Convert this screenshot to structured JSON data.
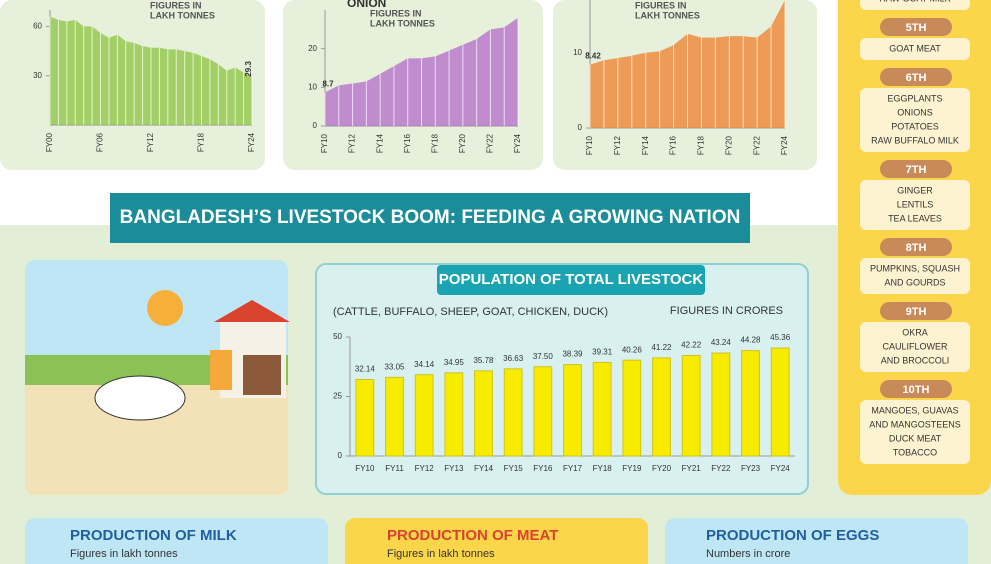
{
  "chart_data": [
    {
      "type": "area",
      "subtitle_lines": [
        "FIGURES IN",
        "LAKH TONNES"
      ],
      "color": "#8cc63f",
      "categories": [
        "FY00",
        null,
        null,
        null,
        null,
        null,
        "FY06",
        null,
        null,
        null,
        null,
        null,
        "FY12",
        null,
        null,
        null,
        null,
        null,
        "FY18",
        null,
        null,
        null,
        null,
        null,
        "FY24"
      ],
      "values": [
        66,
        64,
        63,
        64,
        60,
        60,
        56,
        53,
        55,
        51,
        50,
        48,
        47,
        47,
        46,
        46,
        45,
        44,
        42,
        40,
        37,
        33,
        35,
        32,
        29.3
      ],
      "value_labels": [
        null,
        null,
        null,
        null,
        null,
        null,
        null,
        null,
        null,
        null,
        null,
        null,
        null,
        null,
        null,
        null,
        null,
        null,
        null,
        null,
        null,
        null,
        null,
        null,
        "29.3"
      ],
      "ylim": [
        0,
        70
      ],
      "yticks": [
        30,
        60
      ]
    },
    {
      "type": "area",
      "title": "ONION",
      "subtitle_lines": [
        "FIGURES IN",
        "LAKH TONNES"
      ],
      "color": "#b36bc9",
      "categories": [
        "FY10",
        null,
        "FY12",
        null,
        "FY14",
        null,
        "FY16",
        null,
        "FY18",
        null,
        "FY20",
        null,
        "FY22",
        null,
        "FY24"
      ],
      "values": [
        8.7,
        10.5,
        11,
        11.5,
        13.5,
        15.5,
        17.5,
        17.5,
        18,
        19.5,
        21,
        22.5,
        25,
        25.5,
        28
      ],
      "value_labels": [
        "8.7",
        null,
        null,
        null,
        null,
        null,
        null,
        null,
        null,
        null,
        null,
        null,
        null,
        null,
        null
      ],
      "ylim": [
        0,
        30
      ],
      "yticks": [
        0,
        10,
        20
      ]
    },
    {
      "type": "area",
      "subtitle_lines": [
        "FIGURES IN",
        "LAKH TONNES"
      ],
      "color": "#f07f2b",
      "categories": [
        "FY10",
        null,
        "FY12",
        null,
        "FY14",
        null,
        "FY16",
        null,
        "FY18",
        null,
        "FY20",
        null,
        "FY22",
        null,
        "FY24"
      ],
      "values": [
        8.42,
        9,
        9.3,
        9.6,
        10,
        10.2,
        11,
        12.5,
        12,
        12,
        12.2,
        12.2,
        12,
        13.5,
        17
      ],
      "value_labels": [
        "8.42",
        null,
        null,
        null,
        null,
        null,
        null,
        null,
        null,
        null,
        null,
        null,
        null,
        null,
        null
      ],
      "ylim": [
        0,
        17
      ],
      "yticks": [
        0,
        10
      ]
    },
    {
      "type": "bar",
      "title": "POPULATION OF TOTAL LIVESTOCK",
      "subtitle": "(CATTLE, BUFFALO, SHEEP, GOAT, CHICKEN, DUCK)",
      "unit": "FIGURES IN CRORES",
      "color": "#f7ec00",
      "categories": [
        "FY10",
        "FY11",
        "FY12",
        "FY13",
        "FY14",
        "FY15",
        "FY16",
        "FY17",
        "FY18",
        "FY19",
        "FY20",
        "FY21",
        "FY22",
        "FY23",
        "FY24"
      ],
      "values": [
        32.14,
        33.05,
        34.14,
        34.95,
        35.78,
        36.63,
        37.5,
        38.39,
        39.31,
        40.26,
        41.22,
        42.22,
        43.24,
        44.28,
        45.36
      ],
      "value_labels": [
        "32.14",
        "33.05",
        "34.14",
        "34.95",
        "35.78",
        "36.63",
        "37.50",
        "38.39",
        "39.31",
        "40.26",
        "41.22",
        "42.22",
        "43.24",
        "44.28",
        "45.36"
      ],
      "ylim": [
        0,
        50
      ],
      "yticks": [
        0,
        25,
        50
      ]
    }
  ],
  "banner": "BANGLADESH’S LIVESTOCK BOOM: FEEDING A GROWING NATION",
  "ranks": [
    {
      "items": [
        "RAW GOAT MILK"
      ]
    },
    {
      "rank": "5TH",
      "items": [
        "GOAT MEAT"
      ]
    },
    {
      "rank": "6TH",
      "items": [
        "EGGPLANTS",
        "ONIONS",
        "POTATOES",
        "RAW BUFFALO MILK"
      ]
    },
    {
      "rank": "7TH",
      "items": [
        "GINGER",
        "LENTILS",
        "TEA LEAVES"
      ]
    },
    {
      "rank": "8TH",
      "items": [
        "PUMPKINS, SQUASH",
        "AND GOURDS"
      ]
    },
    {
      "rank": "9TH",
      "items": [
        "OKRA",
        "CAULIFLOWER",
        "AND BROCCOLI"
      ]
    },
    {
      "rank": "10TH",
      "items": [
        "MANGOES, GUAVAS",
        "AND MANGOSTEENS",
        "DUCK MEAT",
        "TOBACCO"
      ]
    }
  ],
  "panels": [
    {
      "title": "PRODUCTION OF MILK",
      "subtitle": "Figures in lakh tonnes"
    },
    {
      "title": "PRODUCTION OF MEAT",
      "subtitle": "Figures in lakh tonnes"
    },
    {
      "title": "PRODUCTION OF EGGS",
      "subtitle": "Numbers in crore"
    }
  ]
}
